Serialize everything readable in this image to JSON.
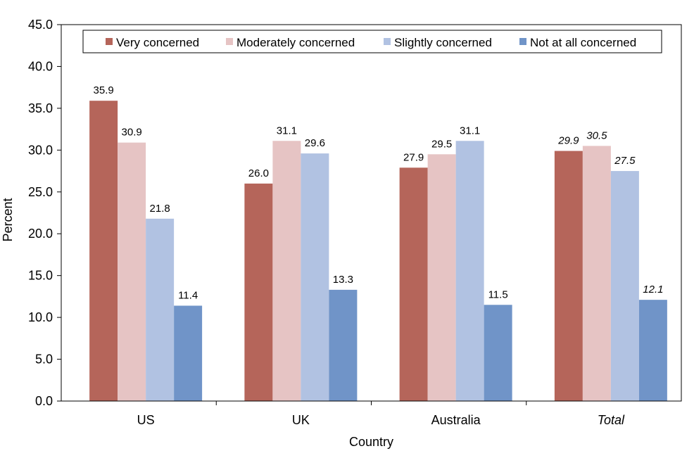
{
  "chart_data": {
    "type": "bar",
    "categories": [
      "US",
      "UK",
      "Australia",
      "Total"
    ],
    "italic_categories": [
      "Total"
    ],
    "series": [
      {
        "name": "Very concerned",
        "color": "#b5655a",
        "values": [
          35.9,
          26.0,
          27.9,
          29.9
        ]
      },
      {
        "name": "Moderately concerned",
        "color": "#e6c4c4",
        "values": [
          30.9,
          31.1,
          29.5,
          30.5
        ]
      },
      {
        "name": "Slightly concerned",
        "color": "#b1c2e2",
        "values": [
          21.8,
          29.6,
          31.1,
          27.5
        ]
      },
      {
        "name": "Not at all concerned",
        "color": "#7094c8",
        "values": [
          11.4,
          13.3,
          11.5,
          12.1
        ]
      }
    ],
    "title": "",
    "xlabel": "Country",
    "ylabel": "Percent",
    "ylim": [
      0,
      45
    ],
    "yticks": [
      0,
      5,
      10,
      15,
      20,
      25,
      30,
      35,
      40,
      45
    ],
    "value_decimals": 1,
    "legend_position": "top",
    "grid": false
  }
}
